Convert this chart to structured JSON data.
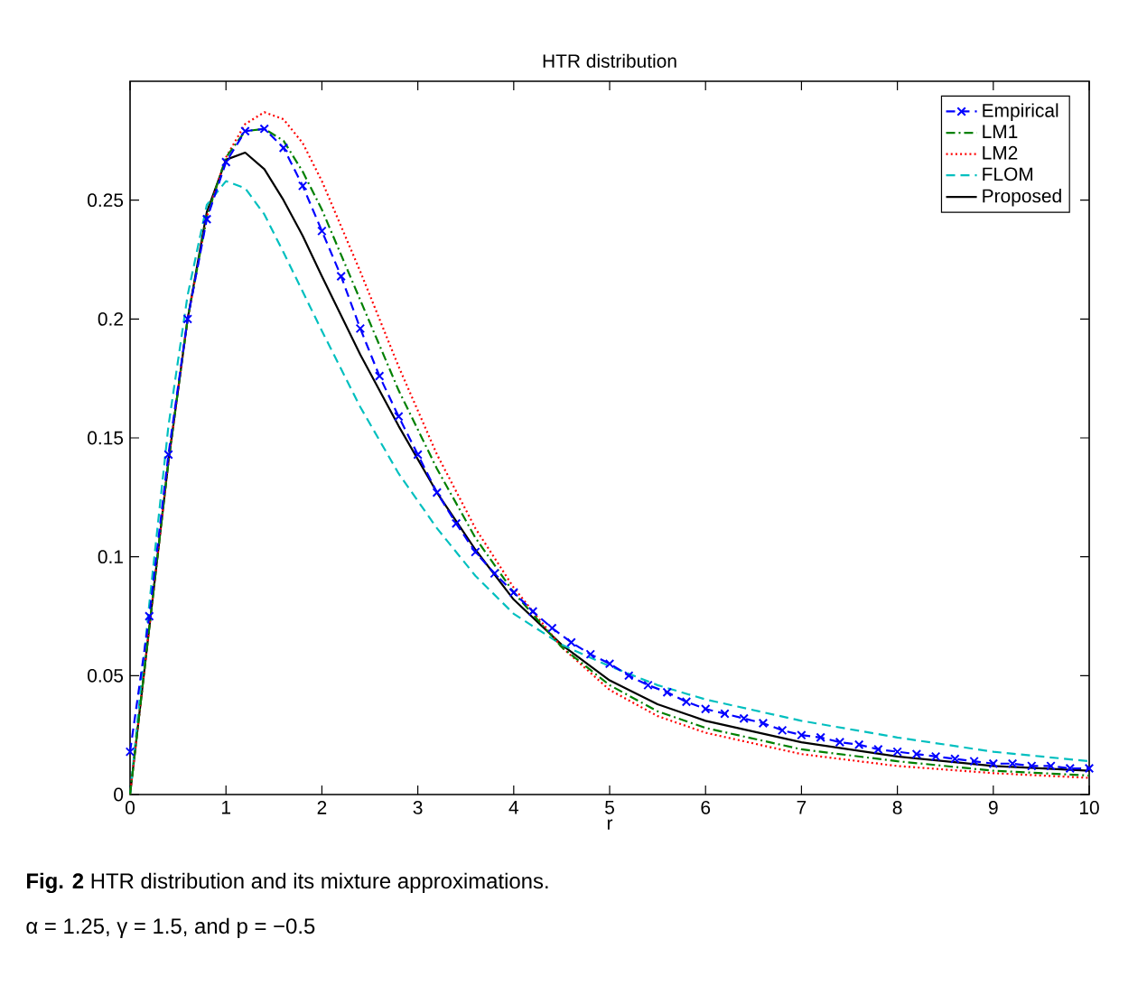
{
  "chart_data": {
    "type": "line",
    "title": "HTR distribution",
    "xlabel": "r",
    "xlim": [
      0,
      10
    ],
    "ylim": [
      0,
      0.3
    ],
    "xticks": [
      0,
      1,
      2,
      3,
      4,
      5,
      6,
      7,
      8,
      9,
      10
    ],
    "yticks": [
      0,
      0.05,
      0.1,
      0.15,
      0.2,
      0.25
    ],
    "legend": "top right",
    "grid": false,
    "series": [
      {
        "name": "Empirical",
        "color": "#0000ff",
        "line_style": "dashed",
        "marker": "cross",
        "x": [
          0,
          0.2,
          0.4,
          0.6,
          0.8,
          1.0,
          1.2,
          1.4,
          1.6,
          1.8,
          2.0,
          2.2,
          2.4,
          2.6,
          2.8,
          3.0,
          3.2,
          3.4,
          3.6,
          3.8,
          4.0,
          4.2,
          4.4,
          4.6,
          4.8,
          5.0,
          5.2,
          5.4,
          5.6,
          5.8,
          6.0,
          6.2,
          6.4,
          6.6,
          6.8,
          7.0,
          7.2,
          7.4,
          7.6,
          7.8,
          8.0,
          8.2,
          8.4,
          8.6,
          8.8,
          9.0,
          9.2,
          9.4,
          9.6,
          9.8,
          10.0
        ],
        "values": [
          0.018,
          0.075,
          0.143,
          0.2,
          0.242,
          0.266,
          0.279,
          0.28,
          0.272,
          0.256,
          0.237,
          0.218,
          0.196,
          0.176,
          0.159,
          0.143,
          0.127,
          0.114,
          0.102,
          0.093,
          0.085,
          0.077,
          0.07,
          0.064,
          0.059,
          0.055,
          0.05,
          0.046,
          0.043,
          0.039,
          0.036,
          0.034,
          0.032,
          0.03,
          0.027,
          0.025,
          0.024,
          0.022,
          0.021,
          0.019,
          0.018,
          0.017,
          0.016,
          0.015,
          0.014,
          0.013,
          0.013,
          0.012,
          0.012,
          0.011,
          0.011
        ]
      },
      {
        "name": "LM1",
        "color": "#008000",
        "line_style": "dashdot",
        "marker": "none",
        "x": [
          0,
          0.2,
          0.4,
          0.6,
          0.8,
          1.0,
          1.2,
          1.4,
          1.6,
          1.8,
          2.0,
          2.4,
          2.8,
          3.2,
          3.6,
          4.0,
          4.5,
          5,
          5.5,
          6,
          7,
          8,
          9,
          10
        ],
        "values": [
          0,
          0.07,
          0.14,
          0.2,
          0.243,
          0.268,
          0.279,
          0.28,
          0.275,
          0.262,
          0.246,
          0.208,
          0.17,
          0.137,
          0.108,
          0.085,
          0.062,
          0.046,
          0.035,
          0.028,
          0.019,
          0.014,
          0.01,
          0.008
        ]
      },
      {
        "name": "LM2",
        "color": "#ff0000",
        "line_style": "dotted",
        "marker": "none",
        "x": [
          0,
          0.2,
          0.4,
          0.6,
          0.8,
          1.0,
          1.2,
          1.4,
          1.6,
          1.8,
          2.0,
          2.4,
          2.8,
          3.2,
          3.6,
          4.0,
          4.5,
          5,
          5.5,
          6,
          7,
          8,
          9,
          10
        ],
        "values": [
          0,
          0.07,
          0.14,
          0.2,
          0.243,
          0.268,
          0.282,
          0.287,
          0.284,
          0.274,
          0.258,
          0.22,
          0.18,
          0.143,
          0.112,
          0.087,
          0.062,
          0.044,
          0.033,
          0.026,
          0.017,
          0.012,
          0.009,
          0.007
        ]
      },
      {
        "name": "FLOM",
        "color": "#00bfbf",
        "line_style": "dashed",
        "marker": "none",
        "x": [
          0,
          0.2,
          0.4,
          0.6,
          0.8,
          1.0,
          1.2,
          1.4,
          1.6,
          2.0,
          2.4,
          2.8,
          3.2,
          3.6,
          4.0,
          4.5,
          5,
          5.5,
          6,
          7,
          8,
          9,
          10
        ],
        "values": [
          0,
          0.08,
          0.155,
          0.21,
          0.248,
          0.258,
          0.255,
          0.244,
          0.228,
          0.195,
          0.163,
          0.135,
          0.112,
          0.092,
          0.076,
          0.063,
          0.054,
          0.046,
          0.04,
          0.031,
          0.024,
          0.018,
          0.014
        ]
      },
      {
        "name": "Proposed",
        "color": "#000000",
        "line_style": "solid",
        "marker": "none",
        "x": [
          0,
          0.2,
          0.4,
          0.6,
          0.8,
          1.0,
          1.2,
          1.4,
          1.6,
          1.8,
          2.0,
          2.4,
          2.8,
          3.2,
          3.6,
          4.0,
          4.5,
          5,
          5.5,
          6,
          7,
          8,
          9,
          10
        ],
        "values": [
          0,
          0.07,
          0.14,
          0.2,
          0.245,
          0.267,
          0.27,
          0.263,
          0.25,
          0.235,
          0.218,
          0.185,
          0.155,
          0.127,
          0.103,
          0.082,
          0.063,
          0.048,
          0.038,
          0.031,
          0.022,
          0.016,
          0.012,
          0.01
        ]
      }
    ],
    "annotations": [
      "**Fig. 2** HTR distribution and its mixture approximations.",
      "α = 1.25, γ = 1.5, and p = −0.5"
    ]
  }
}
